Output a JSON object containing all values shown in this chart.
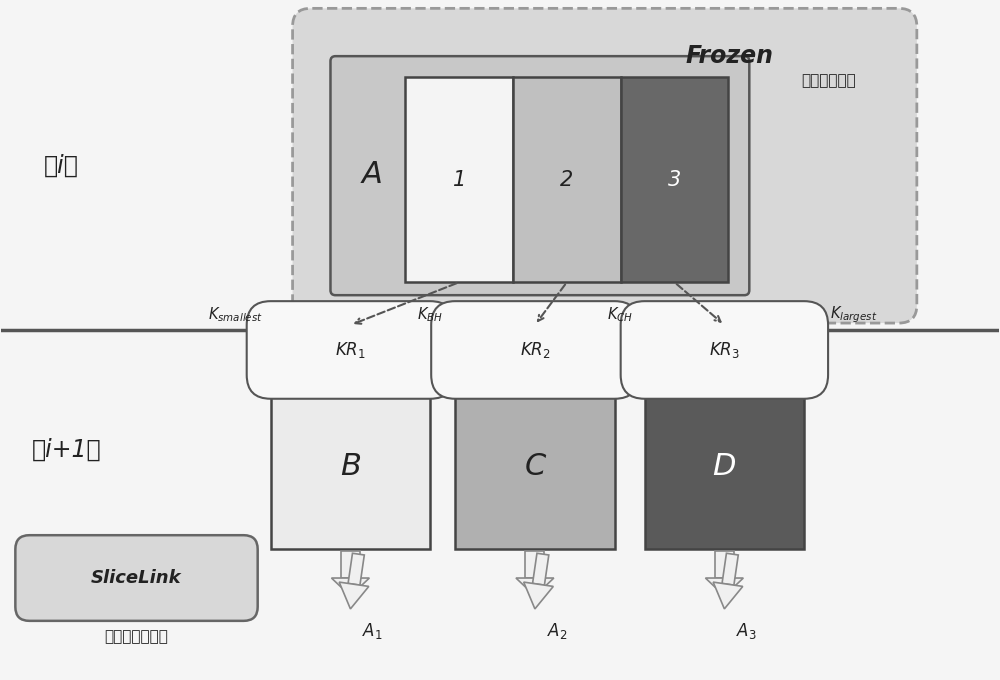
{
  "bg_color": "#f5f5f5",
  "layer_i_label": "第i层",
  "layer_i1_label": "第i+1层",
  "frozen_label": "Frozen",
  "frozen_sublabel": "（冻结状态）",
  "slicelink_label": "SliceLink",
  "slicelink_sublabel": "（链接元数据）",
  "dashed_bg": "#d8d8d8",
  "inner_bg": "#c8c8c8",
  "seg1_color": "#f4f4f4",
  "seg2_color": "#c0c0c0",
  "seg3_color": "#686868",
  "B_color": "#ebebeb",
  "C_color": "#b0b0b0",
  "D_color": "#5a5a5a",
  "kr_bar_color": "#f8f8f8",
  "slicelink_bg": "#d8d8d8",
  "arrow_fill": "#f0f0f0",
  "arrow_edge": "#888888",
  "sep_line_color": "#555555",
  "text_dark": "#222222",
  "text_mid": "#444444"
}
